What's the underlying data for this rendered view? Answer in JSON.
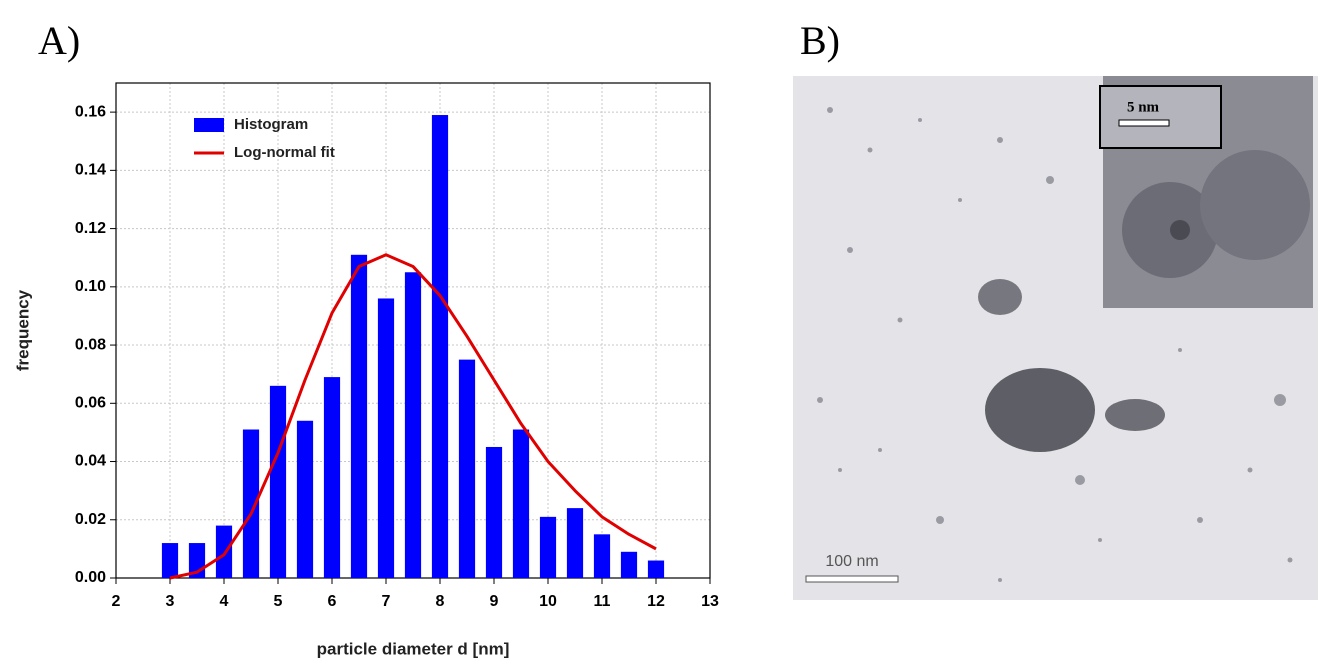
{
  "panel_labels": [
    "A)",
    "B)"
  ],
  "chart_data": {
    "type": "bar",
    "x_label": "particle diameter d [nm]",
    "y_label": "frequency",
    "x": [
      3,
      3.5,
      4,
      4.5,
      5,
      5.5,
      6,
      6.5,
      7,
      7.5,
      8,
      8.5,
      9,
      9.5,
      10,
      10.5,
      11,
      11.5,
      12
    ],
    "series": [
      {
        "name": "Histogram",
        "type": "bar",
        "color": "#0000ff",
        "values": [
          0.012,
          0.012,
          0.018,
          0.051,
          0.066,
          0.054,
          0.069,
          0.111,
          0.096,
          0.105,
          0.159,
          0.075,
          0.045,
          0.051,
          0.021,
          0.024,
          0.015,
          0.009,
          0.006
        ]
      },
      {
        "name": "Log-normal fit",
        "type": "line",
        "color": "#e00000",
        "values": [
          0.0,
          0.002,
          0.008,
          0.022,
          0.043,
          0.068,
          0.091,
          0.107,
          0.111,
          0.107,
          0.097,
          0.083,
          0.068,
          0.053,
          0.04,
          0.03,
          0.021,
          0.015,
          0.01
        ]
      }
    ],
    "xlim": [
      2,
      13
    ],
    "xticks": [
      2,
      3,
      4,
      5,
      6,
      7,
      8,
      9,
      10,
      11,
      12,
      13
    ],
    "ylim": [
      0,
      0.17
    ],
    "yticks": [
      {
        "value": 0,
        "label": "0.00"
      },
      {
        "value": 0.02,
        "label": "0.02"
      },
      {
        "value": 0.04,
        "label": "0.04"
      },
      {
        "value": 0.06,
        "label": "0.06"
      },
      {
        "value": 0.08,
        "label": "0.08"
      },
      {
        "value": 0.1,
        "label": "0.10"
      },
      {
        "value": 0.12,
        "label": "0.12"
      },
      {
        "value": 0.14,
        "label": "0.14"
      },
      {
        "value": 0.16,
        "label": "0.16"
      }
    ],
    "grid": true,
    "legend": "upper left"
  },
  "micrograph": {
    "inset_scale_bar": "5 nm",
    "scale_bar": "100 nm"
  }
}
